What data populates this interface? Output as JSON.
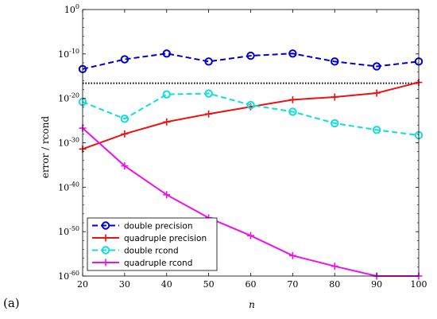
{
  "panel_label": "(a)",
  "chart_data": {
    "type": "line",
    "title": "",
    "xlabel": "n",
    "ylabel": "error / rcond",
    "x": [
      20,
      30,
      40,
      50,
      60,
      70,
      80,
      90,
      100
    ],
    "xlim": [
      20,
      100
    ],
    "xticks": [
      20,
      30,
      40,
      50,
      60,
      70,
      80,
      90,
      100
    ],
    "y_scale": "log",
    "ylim_exp": [
      -60,
      0
    ],
    "ytick_exps": [
      0,
      -10,
      -20,
      -30,
      -40,
      -50,
      -60
    ],
    "ytick_base": "10",
    "reference_line": {
      "y_exp": -16.6,
      "style": "dotted",
      "color": "#000000"
    },
    "legend_position": "bottom-left",
    "series": [
      {
        "name": "double precision",
        "color": "#0000cc",
        "marker": "circle",
        "linestyle": "dashed",
        "y_exp": [
          -13.4,
          -11.2,
          -9.9,
          -11.7,
          -10.4,
          -9.9,
          -11.7,
          -12.8,
          -11.7
        ]
      },
      {
        "name": "quadruple precision",
        "color": "#ee1111",
        "marker": "plus",
        "linestyle": "solid",
        "y_exp": [
          -31.4,
          -28.0,
          -25.3,
          -23.5,
          -21.9,
          -20.3,
          -19.7,
          -18.8,
          -16.4
        ]
      },
      {
        "name": "double rcond",
        "color": "#11dddd",
        "marker": "circle",
        "linestyle": "dashed",
        "y_exp": [
          -20.8,
          -24.6,
          -19.1,
          -18.9,
          -21.5,
          -23.0,
          -25.6,
          -27.1,
          -28.3
        ]
      },
      {
        "name": "quadruple rcond",
        "color": "#ee11ee",
        "marker": "plus",
        "linestyle": "solid",
        "y_exp": [
          -26.7,
          -35.2,
          -41.7,
          -46.9,
          -50.9,
          -55.4,
          -57.8,
          -60.1,
          -63.2
        ]
      }
    ]
  }
}
